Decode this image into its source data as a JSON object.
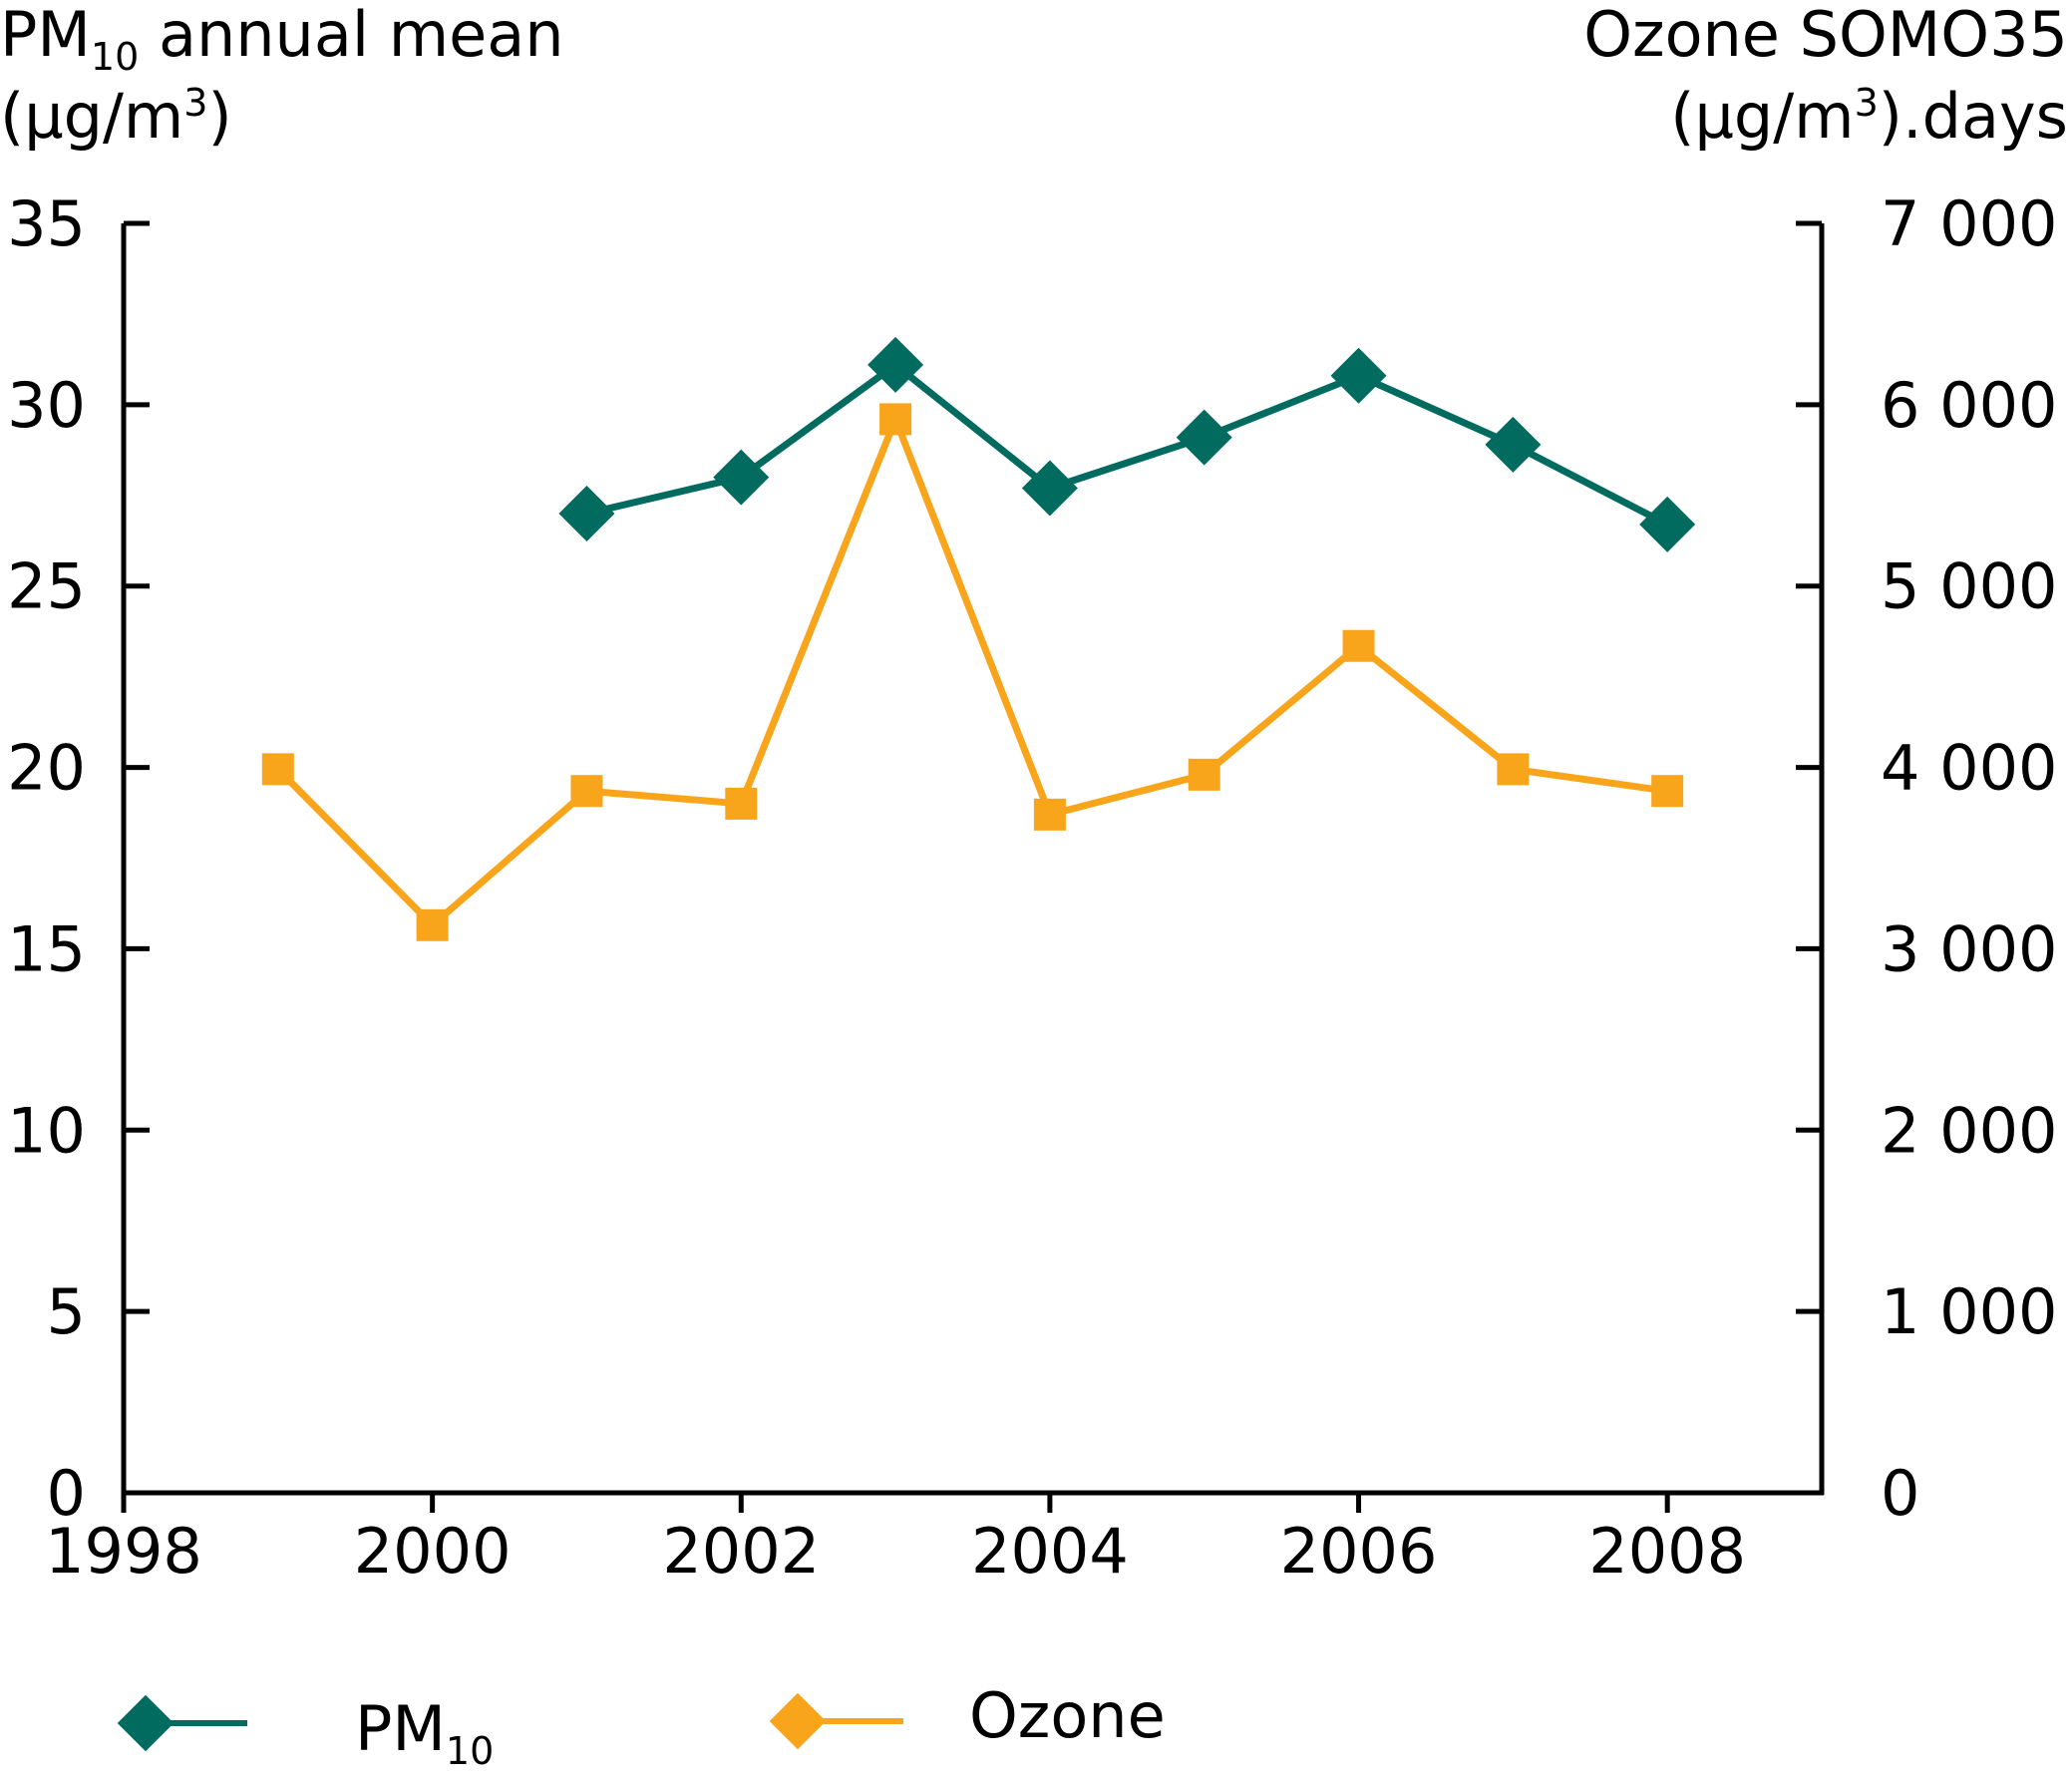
{
  "chart_data": {
    "type": "line",
    "left_axis": {
      "label_prefix": "PM",
      "label_subscript": "10",
      "label_suffix": " annual mean",
      "unit_prefix": "(µg/m",
      "unit_superscript": "3",
      "unit_suffix": ")",
      "ylim": [
        0,
        35
      ],
      "ticks": [
        "0",
        "5",
        "10",
        "15",
        "20",
        "25",
        "30",
        "35"
      ]
    },
    "right_axis": {
      "label": "Ozone SOMO35",
      "unit_prefix": "(µg/m",
      "unit_superscript": "3",
      "unit_suffix": ").days",
      "ylim": [
        0,
        7000
      ],
      "ticks": [
        "0",
        "1 000",
        "2 000",
        "3 000",
        "4 000",
        "5 000",
        "6 000",
        "7 000"
      ]
    },
    "x_axis": {
      "xlim": [
        1998,
        2009
      ],
      "ticks": [
        "1998",
        "2000",
        "2002",
        "2004",
        "2006",
        "2008"
      ]
    },
    "series": [
      {
        "name": "PM",
        "name_subscript": "10",
        "axis": "left",
        "marker": "diamond",
        "color": "#006b5e",
        "x": [
          2001,
          2002,
          2003,
          2004,
          2005,
          2006,
          2007,
          2008
        ],
        "values": [
          27.0,
          28.0,
          31.1,
          27.7,
          29.1,
          30.8,
          28.9,
          26.7
        ]
      },
      {
        "name": "Ozone",
        "axis": "right",
        "marker": "square",
        "color": "#f9a51c",
        "x": [
          1999,
          2000,
          2001,
          2002,
          2003,
          2004,
          2005,
          2006,
          2007,
          2008
        ],
        "values": [
          3990,
          3130,
          3870,
          3800,
          5920,
          3740,
          3960,
          4670,
          3990,
          3870
        ]
      }
    ],
    "grid": false,
    "legend": "bottom"
  }
}
